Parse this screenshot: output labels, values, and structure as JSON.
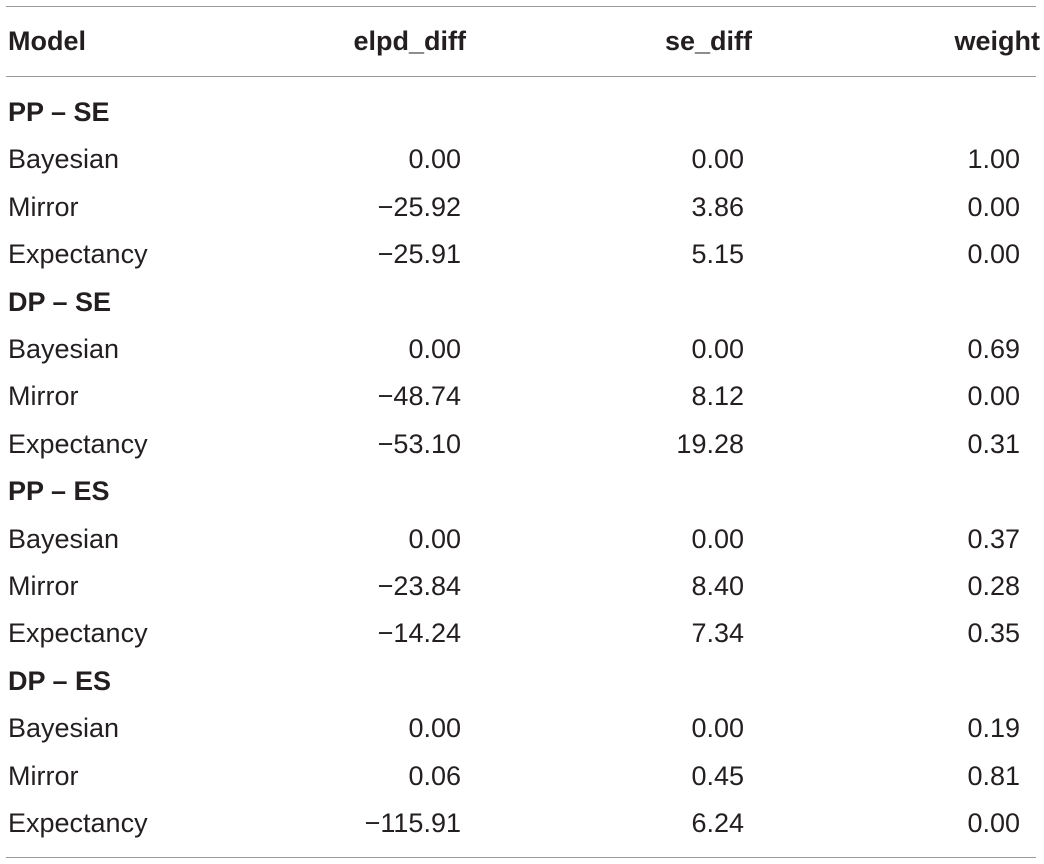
{
  "table": {
    "headers": {
      "model": "Model",
      "elpd_diff": "elpd_diff",
      "se_diff": "se_diff",
      "weight": "weight"
    },
    "groups": [
      {
        "title": "PP – SE",
        "rows": [
          {
            "model": "Bayesian",
            "elpd_diff": "0.00",
            "se_diff": "0.00",
            "weight": "1.00"
          },
          {
            "model": "Mirror",
            "elpd_diff": "−25.92",
            "se_diff": "3.86",
            "weight": "0.00"
          },
          {
            "model": "Expectancy",
            "elpd_diff": "−25.91",
            "se_diff": "5.15",
            "weight": "0.00"
          }
        ]
      },
      {
        "title": "DP – SE",
        "rows": [
          {
            "model": "Bayesian",
            "elpd_diff": "0.00",
            "se_diff": "0.00",
            "weight": "0.69"
          },
          {
            "model": "Mirror",
            "elpd_diff": "−48.74",
            "se_diff": "8.12",
            "weight": "0.00"
          },
          {
            "model": "Expectancy",
            "elpd_diff": "−53.10",
            "se_diff": "19.28",
            "weight": "0.31"
          }
        ]
      },
      {
        "title": "PP – ES",
        "rows": [
          {
            "model": "Bayesian",
            "elpd_diff": "0.00",
            "se_diff": "0.00",
            "weight": "0.37"
          },
          {
            "model": "Mirror",
            "elpd_diff": "−23.84",
            "se_diff": "8.40",
            "weight": "0.28"
          },
          {
            "model": "Expectancy",
            "elpd_diff": "−14.24",
            "se_diff": "7.34",
            "weight": "0.35"
          }
        ]
      },
      {
        "title": "DP – ES",
        "rows": [
          {
            "model": "Bayesian",
            "elpd_diff": "0.00",
            "se_diff": "0.00",
            "weight": "0.19"
          },
          {
            "model": "Mirror",
            "elpd_diff": "0.06",
            "se_diff": "0.45",
            "weight": "0.81"
          },
          {
            "model": "Expectancy",
            "elpd_diff": "−115.91",
            "se_diff": "6.24",
            "weight": "0.00"
          }
        ]
      }
    ]
  }
}
